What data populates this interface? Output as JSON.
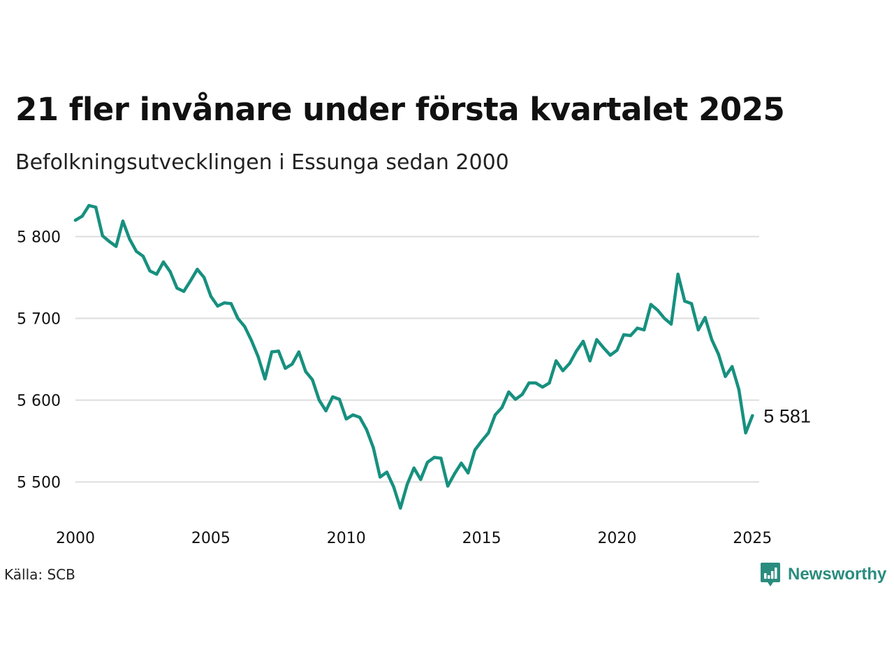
{
  "title": "21 fler invånare under första kvartalet 2025",
  "subtitle": "Befolkningsutvecklingen i Essunga sedan 2000",
  "source": "Källa: SCB",
  "brand": {
    "name": "Newsworthy",
    "icon": "newsworthy-logo-icon",
    "color": "#2a8c7e"
  },
  "colors": {
    "line": "#17907f",
    "grid": "#dddddd",
    "text": "#111111"
  },
  "chart_data": {
    "type": "line",
    "title": "21 fler invånare under första kvartalet 2025",
    "subtitle": "Befolkningsutvecklingen i Essunga sedan 2000",
    "xlabel": "",
    "ylabel": "",
    "xlim": [
      2000,
      2025.25
    ],
    "ylim": [
      5450,
      5850
    ],
    "grid": true,
    "x_ticks": [
      2000,
      2005,
      2010,
      2015,
      2020,
      2025
    ],
    "x_tick_labels": [
      "2000",
      "2005",
      "2010",
      "2015",
      "2020",
      "2025"
    ],
    "y_ticks": [
      5500,
      5600,
      5700,
      5800
    ],
    "y_tick_labels": [
      "5 500",
      "5 600",
      "5 700",
      "5 800"
    ],
    "end_label": "5 581",
    "series": [
      {
        "x_start": 2000.0,
        "x_step": 0.25,
        "values": [
          5820,
          5825,
          5838,
          5836,
          5801,
          5794,
          5788,
          5819,
          5797,
          5782,
          5776,
          5758,
          5754,
          5769,
          5757,
          5737,
          5733,
          5746,
          5760,
          5750,
          5727,
          5715,
          5719,
          5718,
          5700,
          5690,
          5673,
          5653,
          5626,
          5659,
          5660,
          5639,
          5644,
          5659,
          5635,
          5625,
          5600,
          5587,
          5604,
          5601,
          5577,
          5582,
          5579,
          5564,
          5542,
          5506,
          5512,
          5494,
          5468,
          5497,
          5517,
          5503,
          5524,
          5530,
          5529,
          5495,
          5510,
          5523,
          5511,
          5539,
          5550,
          5560,
          5582,
          5591,
          5610,
          5601,
          5607,
          5621,
          5621,
          5616,
          5621,
          5648,
          5636,
          5645,
          5660,
          5672,
          5648,
          5674,
          5664,
          5655,
          5661,
          5680,
          5679,
          5688,
          5686,
          5717,
          5710,
          5700,
          5693,
          5754,
          5721,
          5718,
          5686,
          5701,
          5674,
          5656,
          5629,
          5641,
          5613,
          5560,
          5581
        ]
      }
    ]
  }
}
